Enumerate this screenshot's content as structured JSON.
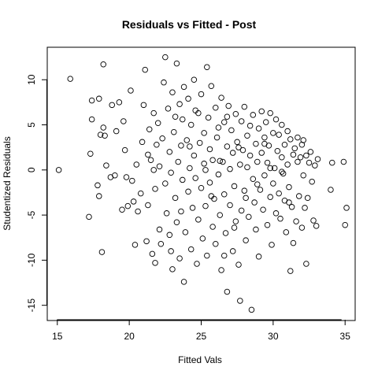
{
  "chart_data": {
    "type": "scatter",
    "title": "Residuals vs Fitted - Post",
    "xlabel": "Fitted Vals",
    "ylabel": "Studentized Residuals",
    "xlim": [
      14.3,
      35.7
    ],
    "ylim": [
      -16.6,
      13.6
    ],
    "xticks": [
      15,
      20,
      25,
      30,
      35
    ],
    "yticks": [
      -15,
      -10,
      -5,
      0,
      5,
      10
    ],
    "grid": false,
    "legend": "none",
    "marker": "open-circle",
    "point_color": "#000000",
    "points": [
      [
        15.1,
        0.0
      ],
      [
        15.9,
        10.1
      ],
      [
        17.2,
        -5.2
      ],
      [
        17.3,
        1.8
      ],
      [
        17.4,
        7.7
      ],
      [
        17.4,
        5.6
      ],
      [
        17.8,
        -1.7
      ],
      [
        17.9,
        7.9
      ],
      [
        17.9,
        -2.9
      ],
      [
        18.0,
        3.9
      ],
      [
        18.1,
        -9.1
      ],
      [
        18.2,
        11.7
      ],
      [
        18.2,
        4.7
      ],
      [
        18.3,
        3.8
      ],
      [
        18.4,
        0.5
      ],
      [
        18.7,
        -0.8
      ],
      [
        18.8,
        7.2
      ],
      [
        19.0,
        -0.6
      ],
      [
        19.1,
        4.3
      ],
      [
        19.3,
        7.5
      ],
      [
        19.5,
        -4.4
      ],
      [
        19.6,
        5.4
      ],
      [
        19.7,
        2.2
      ],
      [
        19.8,
        -0.8
      ],
      [
        19.9,
        -4.0
      ],
      [
        20.1,
        8.8
      ],
      [
        20.2,
        -1.2
      ],
      [
        20.3,
        -3.5
      ],
      [
        20.4,
        -8.3
      ],
      [
        20.5,
        0.6
      ],
      [
        20.6,
        -4.6
      ],
      [
        20.8,
        -2.6
      ],
      [
        20.9,
        3.1
      ],
      [
        21.0,
        7.2
      ],
      [
        21.1,
        11.1
      ],
      [
        21.2,
        -7.9
      ],
      [
        21.3,
        1.7
      ],
      [
        21.3,
        -3.9
      ],
      [
        21.4,
        4.5
      ],
      [
        21.5,
        1.1
      ],
      [
        21.6,
        -9.3
      ],
      [
        21.7,
        6.3
      ],
      [
        21.8,
        -10.3
      ],
      [
        21.8,
        -2.1
      ],
      [
        21.9,
        2.8
      ],
      [
        22.0,
        5.2
      ],
      [
        22.1,
        -6.6
      ],
      [
        22.1,
        0.4
      ],
      [
        22.2,
        -8.2
      ],
      [
        22.3,
        3.5
      ],
      [
        22.4,
        9.7
      ],
      [
        22.5,
        -1.5
      ],
      [
        22.5,
        12.5
      ],
      [
        22.6,
        -4.8
      ],
      [
        22.7,
        6.8
      ],
      [
        22.8,
        -7.2
      ],
      [
        22.8,
        2.0
      ],
      [
        22.9,
        -0.3
      ],
      [
        23.0,
        -11.0
      ],
      [
        23.0,
        8.6
      ],
      [
        23.1,
        4.2
      ],
      [
        23.2,
        -3.1
      ],
      [
        23.3,
        11.8
      ],
      [
        23.3,
        -5.8
      ],
      [
        23.4,
        0.9
      ],
      [
        23.5,
        7.3
      ],
      [
        23.5,
        -9.8
      ],
      [
        23.6,
        2.7
      ],
      [
        23.7,
        -1.1
      ],
      [
        23.7,
        5.6
      ],
      [
        23.8,
        -12.4
      ],
      [
        23.8,
        9.2
      ],
      [
        23.9,
        -6.9
      ],
      [
        24.0,
        3.3
      ],
      [
        24.1,
        -2.4
      ],
      [
        24.1,
        7.9
      ],
      [
        24.2,
        0.2
      ],
      [
        24.3,
        -8.8
      ],
      [
        24.3,
        5.0
      ],
      [
        24.4,
        -4.2
      ],
      [
        24.5,
        10.0
      ],
      [
        24.5,
        1.6
      ],
      [
        24.6,
        -0.9
      ],
      [
        24.7,
        -10.4
      ],
      [
        24.8,
        6.3
      ],
      [
        24.8,
        -5.5
      ],
      [
        24.9,
        3.0
      ],
      [
        25.0,
        -2.0
      ],
      [
        25.0,
        8.4
      ],
      [
        25.1,
        -7.6
      ],
      [
        25.2,
        4.1
      ],
      [
        25.2,
        0.7
      ],
      [
        25.3,
        -4.0
      ],
      [
        25.4,
        11.4
      ],
      [
        25.4,
        -9.5
      ],
      [
        25.5,
        5.8
      ],
      [
        25.6,
        2.3
      ],
      [
        25.6,
        -1.4
      ],
      [
        25.7,
        9.3
      ],
      [
        25.8,
        -6.3
      ],
      [
        25.8,
        1.1
      ],
      [
        25.9,
        -3.2
      ],
      [
        26.0,
        6.9
      ],
      [
        26.0,
        -8.2
      ],
      [
        26.1,
        3.6
      ],
      [
        26.2,
        -0.5
      ],
      [
        26.2,
        4.7
      ],
      [
        26.3,
        -5.0
      ],
      [
        26.4,
        8.0
      ],
      [
        26.4,
        -11.1
      ],
      [
        26.5,
        0.9
      ],
      [
        26.6,
        -2.7
      ],
      [
        26.6,
        5.3
      ],
      [
        26.7,
        -7.0
      ],
      [
        26.8,
        2.6
      ],
      [
        26.8,
        -13.5
      ],
      [
        26.9,
        7.1
      ],
      [
        27.0,
        -3.9
      ],
      [
        27.0,
        0.1
      ],
      [
        27.1,
        4.4
      ],
      [
        27.2,
        -9.0
      ],
      [
        27.2,
        1.9
      ],
      [
        27.3,
        -1.8
      ],
      [
        27.4,
        6.2
      ],
      [
        27.4,
        -5.7
      ],
      [
        27.5,
        3.1
      ],
      [
        27.6,
        -10.5
      ],
      [
        27.7,
        -14.5
      ],
      [
        27.7,
        0.6
      ],
      [
        27.8,
        5.4
      ],
      [
        27.8,
        -4.5
      ],
      [
        27.9,
        2.2
      ],
      [
        28.0,
        -2.3
      ],
      [
        28.0,
        7.0
      ],
      [
        28.1,
        -7.8
      ],
      [
        28.2,
        3.8
      ],
      [
        28.2,
        0.3
      ],
      [
        28.3,
        -5.2
      ],
      [
        28.4,
        1.6
      ],
      [
        28.4,
        4.9
      ],
      [
        28.5,
        -15.5
      ],
      [
        28.6,
        -1.0
      ],
      [
        28.6,
        6.1
      ],
      [
        28.7,
        -3.6
      ],
      [
        28.8,
        2.9
      ],
      [
        28.8,
        -6.6
      ],
      [
        28.9,
        0.9
      ],
      [
        29.0,
        4.6
      ],
      [
        29.0,
        -9.6
      ],
      [
        29.1,
        -2.2
      ],
      [
        29.2,
        6.5
      ],
      [
        29.2,
        1.9
      ],
      [
        29.3,
        -4.4
      ],
      [
        29.4,
        3.6
      ],
      [
        29.4,
        -0.6
      ],
      [
        29.5,
        5.3
      ],
      [
        29.6,
        -6.1
      ],
      [
        29.6,
        0.8
      ],
      [
        29.7,
        2.7
      ],
      [
        29.8,
        -3.0
      ],
      [
        29.8,
        6.3
      ],
      [
        29.9,
        -8.3
      ],
      [
        30.0,
        4.1
      ],
      [
        30.0,
        -1.5
      ],
      [
        30.1,
        0.2
      ],
      [
        30.2,
        5.6
      ],
      [
        30.2,
        -4.8
      ],
      [
        30.3,
        2.1
      ],
      [
        30.4,
        -2.6
      ],
      [
        30.4,
        3.9
      ],
      [
        30.5,
        -5.4
      ],
      [
        30.6,
        1.4
      ],
      [
        30.6,
        5.0
      ],
      [
        30.7,
        -0.4
      ],
      [
        30.8,
        -3.4
      ],
      [
        30.8,
        2.8
      ],
      [
        30.9,
        -6.9
      ],
      [
        31.0,
        4.3
      ],
      [
        31.0,
        0.6
      ],
      [
        31.1,
        -1.9
      ],
      [
        31.2,
        -11.2
      ],
      [
        31.2,
        3.4
      ],
      [
        31.3,
        -4.1
      ],
      [
        31.4,
        1.7
      ],
      [
        31.4,
        -8.1
      ],
      [
        31.5,
        2.4
      ],
      [
        31.6,
        -5.7
      ],
      [
        31.7,
        0.9
      ],
      [
        31.7,
        3.6
      ],
      [
        31.8,
        -2.9
      ],
      [
        31.9,
        1.4
      ],
      [
        32.0,
        -6.4
      ],
      [
        32.0,
        2.8
      ],
      [
        32.1,
        -0.6
      ],
      [
        32.2,
        -4.2
      ],
      [
        32.3,
        -10.4
      ],
      [
        32.3,
        1.6
      ],
      [
        32.4,
        -3.1
      ],
      [
        32.5,
        0.8
      ],
      [
        32.6,
        2.0
      ],
      [
        32.7,
        -1.3
      ],
      [
        32.8,
        -5.6
      ],
      [
        32.9,
        0.5
      ],
      [
        33.0,
        -6.2
      ],
      [
        33.1,
        1.2
      ],
      [
        34.0,
        -2.2
      ],
      [
        34.1,
        0.8
      ],
      [
        34.9,
        0.9
      ],
      [
        35.0,
        -6.1
      ],
      [
        35.1,
        -4.2
      ],
      [
        24.2,
        2.6
      ],
      [
        26.8,
        5.9
      ],
      [
        28.9,
        -1.6
      ],
      [
        23.6,
        -4.6
      ],
      [
        27.3,
        -6.4
      ],
      [
        30.6,
        -0.2
      ],
      [
        25.7,
        -2.9
      ],
      [
        29.4,
        2.9
      ],
      [
        22.9,
        -9.0
      ],
      [
        26.3,
        1.0
      ],
      [
        31.1,
        -3.6
      ],
      [
        24.6,
        6.6
      ],
      [
        28.1,
        -3.1
      ],
      [
        32.1,
        3.3
      ],
      [
        21.7,
        0.0
      ],
      [
        27.6,
        2.5
      ],
      [
        25.3,
        0.0
      ],
      [
        29.8,
        0.2
      ],
      [
        23.2,
        5.9
      ],
      [
        26.6,
        -9.5
      ]
    ]
  }
}
